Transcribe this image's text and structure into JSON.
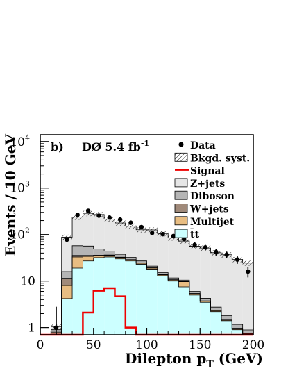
{
  "chart_data": {
    "type": "bar",
    "panel_label": "b)",
    "experiment": "DØ 5.4 fb",
    "experiment_sup": "-1",
    "xlabel": "Dilepton p",
    "xlabel_sub": "T",
    "xlabel_unit": " (GeV)",
    "ylabel": "Events / 10 GeV",
    "xlim": [
      0,
      200
    ],
    "ylim": [
      0.7,
      14000
    ],
    "yscale": "log",
    "x_ticks": [
      {
        "value": 0,
        "label": "0"
      },
      {
        "value": 50,
        "label": "50"
      },
      {
        "value": 100,
        "label": "100"
      },
      {
        "value": 150,
        "label": "150"
      },
      {
        "value": 200,
        "label": "200"
      }
    ],
    "y_ticks": [
      {
        "value": 1,
        "base": "1",
        "exp": ""
      },
      {
        "value": 10,
        "base": "10",
        "exp": ""
      },
      {
        "value": 100,
        "base": "10",
        "exp": "2"
      },
      {
        "value": 1000,
        "base": "10",
        "exp": "3"
      },
      {
        "value": 10000,
        "base": "10",
        "exp": "4"
      }
    ],
    "bin_edges": [
      10,
      20,
      30,
      40,
      50,
      60,
      70,
      80,
      90,
      100,
      110,
      120,
      130,
      140,
      150,
      160,
      170,
      180,
      190,
      200
    ],
    "stack": [
      {
        "name": "t̄t",
        "color": "#ccffff",
        "values": [
          0.55,
          4.2,
          19,
          27,
          32,
          33,
          30,
          27,
          23,
          18,
          13,
          10,
          7.5,
          5.0,
          3.5,
          2.2,
          1.4,
          0.9,
          0.7
        ]
      },
      {
        "name": "Multijet",
        "color": "#e8bd82",
        "values": [
          0.15,
          3.8,
          14,
          7,
          3,
          2.5,
          2,
          1.4,
          1.2,
          1.0,
          0.6,
          0.5,
          2.2,
          0.3,
          0.2,
          0.1,
          0.05,
          0.05,
          0.02
        ]
      },
      {
        "name": "W+jets",
        "color": "#a08a7a",
        "values": [
          0.1,
          3.5,
          2.5,
          1.5,
          1.0,
          0.8,
          0.6,
          0.5,
          0.4,
          0.3,
          0.2,
          0.2,
          0.1,
          0.1,
          0.05,
          0.05,
          0.05,
          0.02,
          0.02
        ]
      },
      {
        "name": "Diboson",
        "color": "#b5b5b5",
        "values": [
          0.1,
          4.5,
          22,
          21,
          13,
          8,
          5,
          3.5,
          2.5,
          1.7,
          1.4,
          1.0,
          0.7,
          0.6,
          0.5,
          0.4,
          0.3,
          0.2,
          0.15
        ]
      },
      {
        "name": "Z+jets",
        "color": "#e6e6e6",
        "values": [
          0.15,
          72,
          180,
          230,
          220,
          170,
          140,
          120,
          100,
          105,
          90,
          73,
          62,
          50,
          47,
          38,
          35,
          28,
          23.5
        ]
      }
    ],
    "syst_band": {
      "name": "Bkgd. syst.",
      "rel_unc": 0.13
    },
    "signal": {
      "name": "Signal",
      "color": "#ee0000",
      "values": [
        0.7,
        0.7,
        0.7,
        2.1,
        6.2,
        7.0,
        4.7,
        1.0,
        0.7,
        0.7,
        0.7,
        0.7,
        0.7,
        0.7,
        0.7,
        0.7,
        0.7,
        0.7,
        0.7
      ]
    },
    "data": {
      "name": "Data",
      "points": [
        [
          15,
          1.0,
          1.8,
          0.3
        ],
        [
          25,
          78,
          9,
          9
        ],
        [
          35,
          265,
          16,
          16
        ],
        [
          45,
          325,
          18,
          18
        ],
        [
          55,
          255,
          16,
          16
        ],
        [
          65,
          232,
          15,
          15
        ],
        [
          75,
          210,
          14,
          14
        ],
        [
          85,
          180,
          13,
          13
        ],
        [
          95,
          145,
          12,
          12
        ],
        [
          105,
          108,
          10,
          10
        ],
        [
          115,
          102,
          10,
          10
        ],
        [
          125,
          93,
          10,
          10
        ],
        [
          135,
          80,
          9,
          9
        ],
        [
          145,
          60,
          8,
          8
        ],
        [
          155,
          53,
          7,
          7
        ],
        [
          165,
          42,
          6.5,
          6.5
        ],
        [
          175,
          37,
          6,
          6
        ],
        [
          185,
          29,
          5.5,
          5.5
        ],
        [
          195,
          16,
          4,
          4
        ]
      ]
    },
    "legend": {
      "placement": "top-right",
      "entries": [
        {
          "label": "Data",
          "kind": "marker"
        },
        {
          "label": "Bkgd. syst.",
          "kind": "hatch"
        },
        {
          "label": "Signal",
          "kind": "line",
          "color": "#ee0000"
        },
        {
          "label": "Z+jets",
          "kind": "box",
          "color": "#e6e6e6"
        },
        {
          "label": "Diboson",
          "kind": "box",
          "color": "#b5b5b5"
        },
        {
          "label": "W+jets",
          "kind": "box",
          "color": "#a08a7a"
        },
        {
          "label": "Multijet",
          "kind": "box",
          "color": "#e8bd82"
        },
        {
          "label": "t̄t",
          "kind": "box",
          "color": "#ccffff"
        }
      ]
    }
  }
}
